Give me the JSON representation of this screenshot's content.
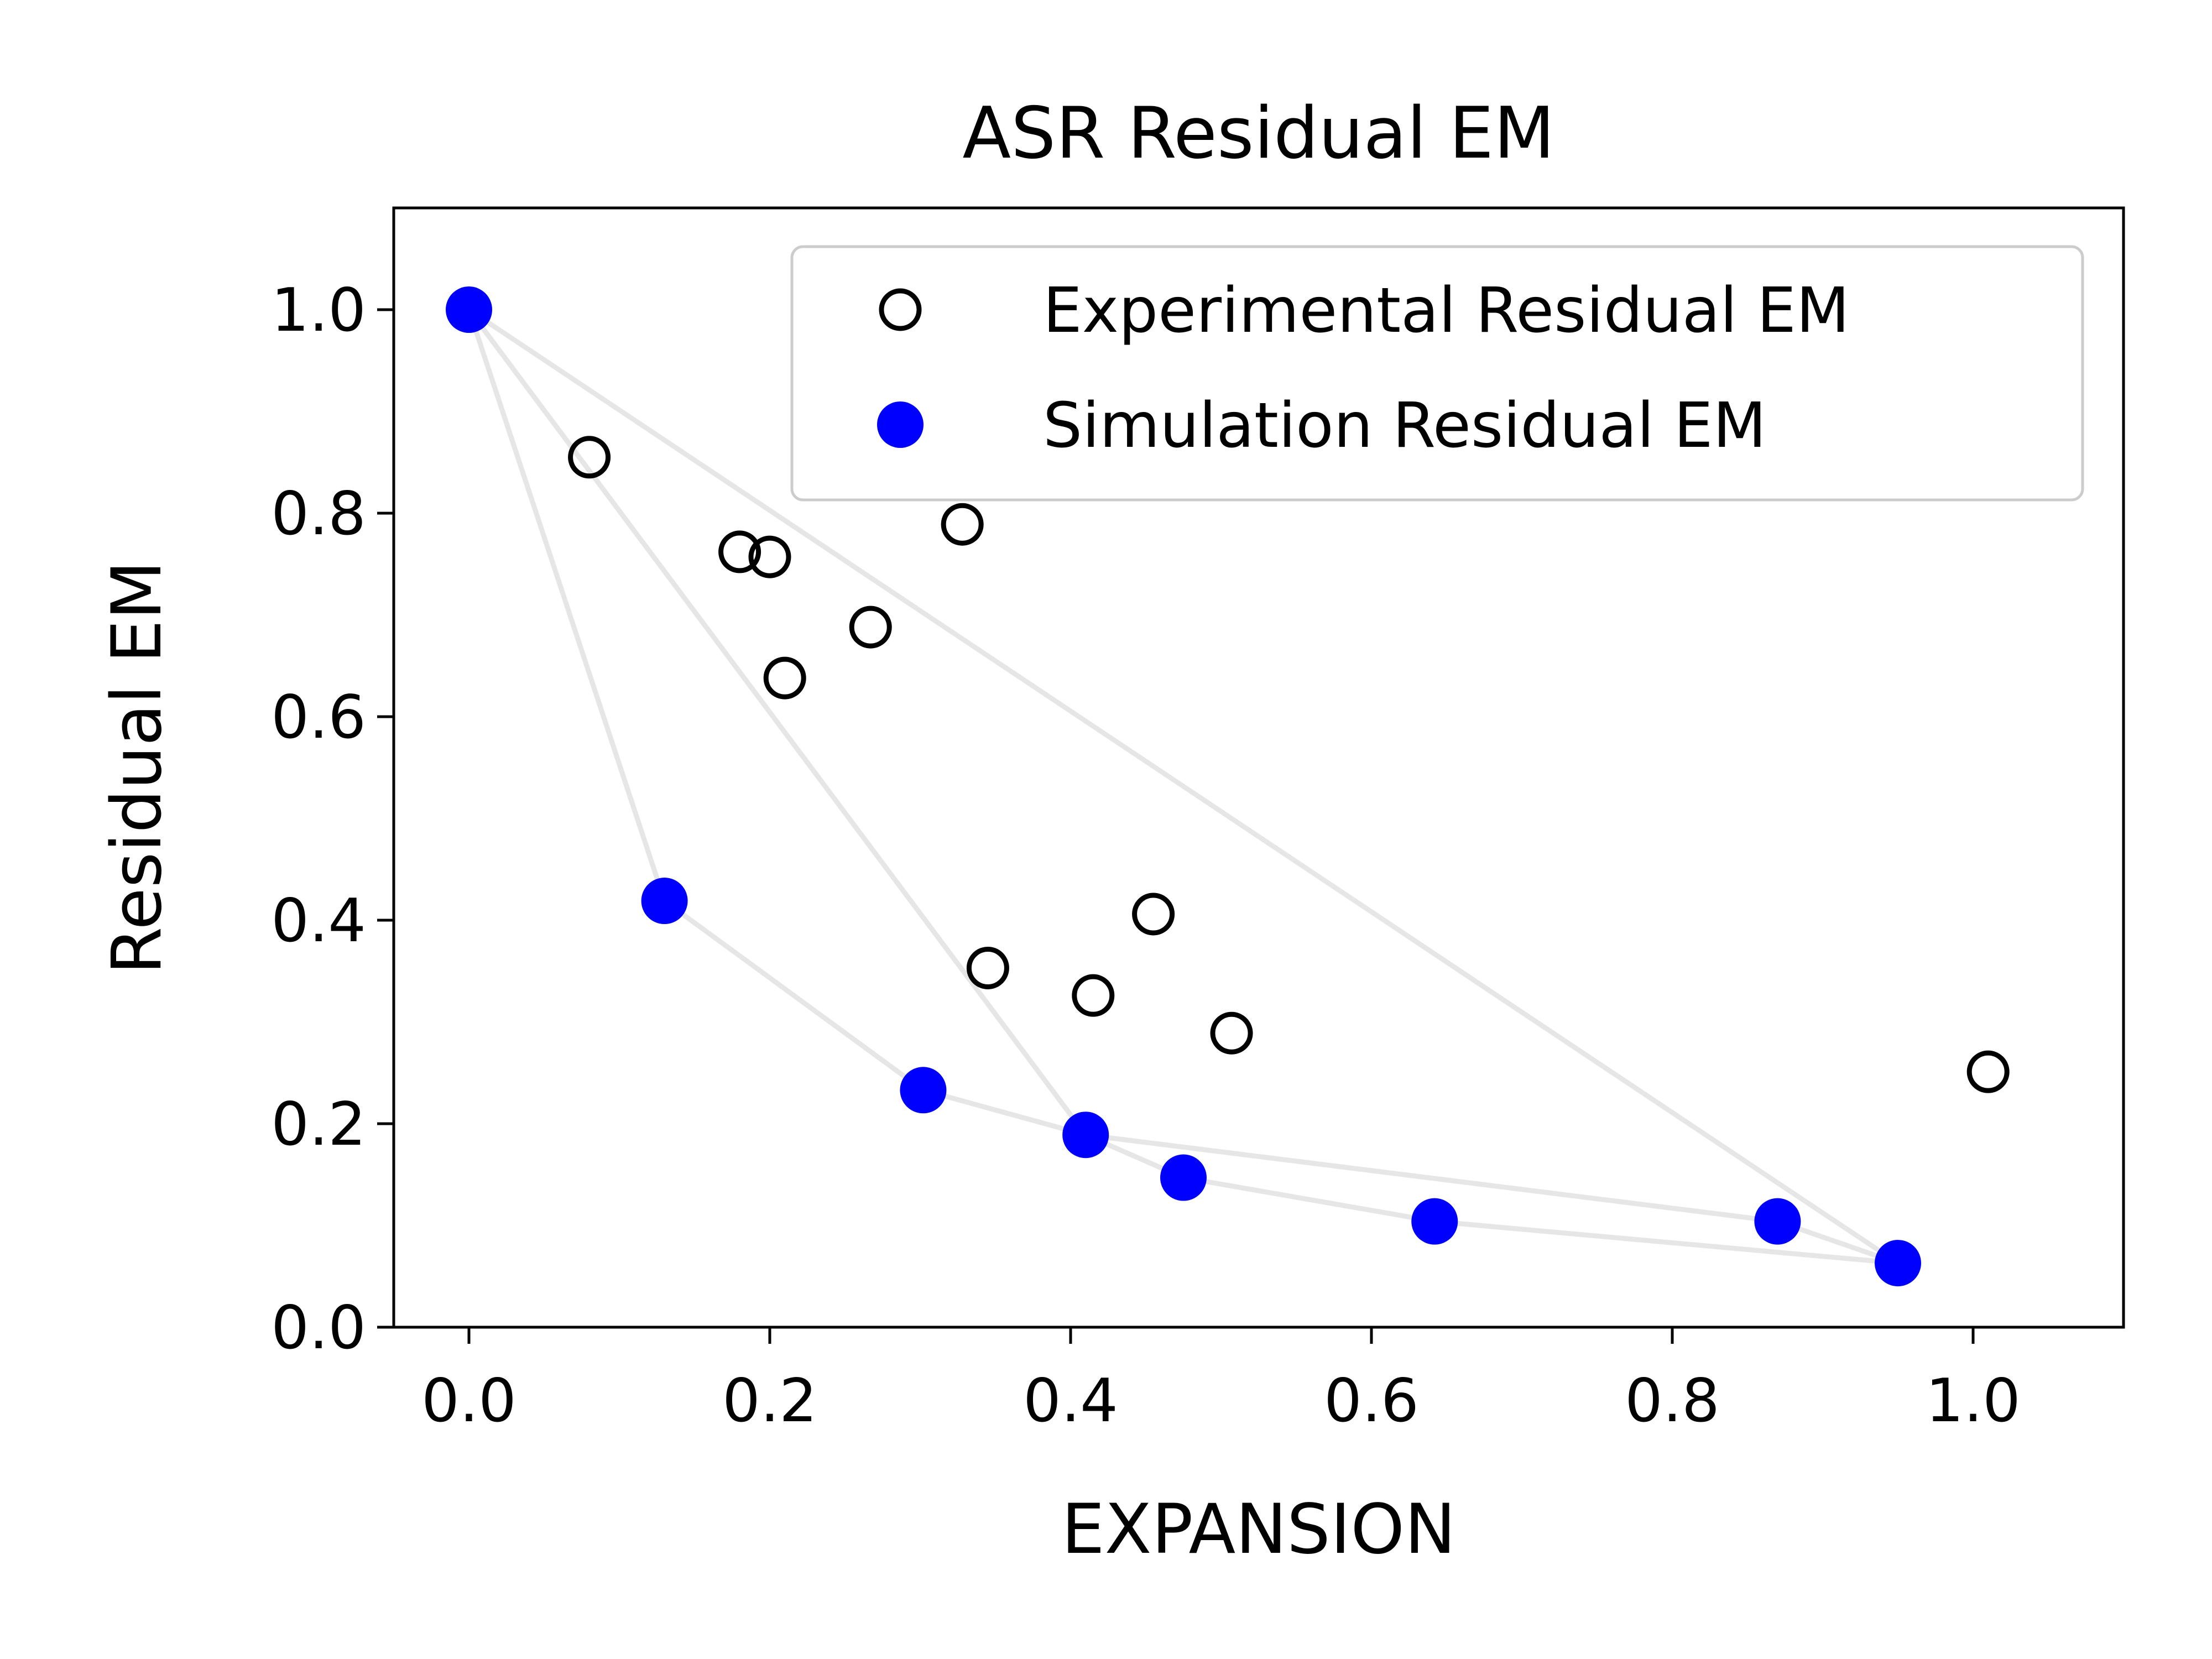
{
  "chart_data": {
    "type": "scatter",
    "title": "ASR Residual EM",
    "xlabel": "EXPANSION",
    "ylabel": "Residual EM",
    "xlim": [
      -0.05,
      1.1
    ],
    "ylim": [
      0.0,
      1.1
    ],
    "xticks": [
      "0.0",
      "0.2",
      "0.4",
      "0.6",
      "0.8",
      "1.0"
    ],
    "yticks": [
      "0.0",
      "0.2",
      "0.4",
      "0.6",
      "0.8",
      "1.0"
    ],
    "grid": false,
    "legend_position": "upper right",
    "series": [
      {
        "name": "Experimental Residual EM",
        "marker": "open-circle",
        "color": "#000000",
        "points": [
          {
            "x": 0.08,
            "y": 0.855
          },
          {
            "x": 0.18,
            "y": 0.762
          },
          {
            "x": 0.2,
            "y": 0.757
          },
          {
            "x": 0.21,
            "y": 0.638
          },
          {
            "x": 0.267,
            "y": 0.688
          },
          {
            "x": 0.328,
            "y": 0.789
          },
          {
            "x": 0.345,
            "y": 0.353
          },
          {
            "x": 0.415,
            "y": 0.326
          },
          {
            "x": 0.455,
            "y": 0.406
          },
          {
            "x": 0.507,
            "y": 0.289
          },
          {
            "x": 1.01,
            "y": 0.251
          }
        ]
      },
      {
        "name": "Simulation Residual EM",
        "marker": "filled-circle",
        "color": "#0000ff",
        "points": [
          {
            "x": 0.0,
            "y": 1.0
          },
          {
            "x": 0.13,
            "y": 0.419
          },
          {
            "x": 0.302,
            "y": 0.233
          },
          {
            "x": 0.41,
            "y": 0.189
          },
          {
            "x": 0.475,
            "y": 0.147
          },
          {
            "x": 0.642,
            "y": 0.104
          },
          {
            "x": 0.87,
            "y": 0.104
          },
          {
            "x": 0.95,
            "y": 0.063
          }
        ]
      }
    ],
    "hull_lines": {
      "color": "#e6e6e6",
      "paths": [
        [
          [
            0.0,
            1.0
          ],
          [
            0.13,
            0.419
          ],
          [
            0.302,
            0.233
          ],
          [
            0.41,
            0.189
          ],
          [
            0.475,
            0.147
          ],
          [
            0.642,
            0.104
          ],
          [
            0.95,
            0.063
          ],
          [
            0.0,
            1.0
          ]
        ],
        [
          [
            0.0,
            1.0
          ],
          [
            0.41,
            0.189
          ],
          [
            0.87,
            0.104
          ],
          [
            0.95,
            0.063
          ]
        ]
      ]
    }
  }
}
